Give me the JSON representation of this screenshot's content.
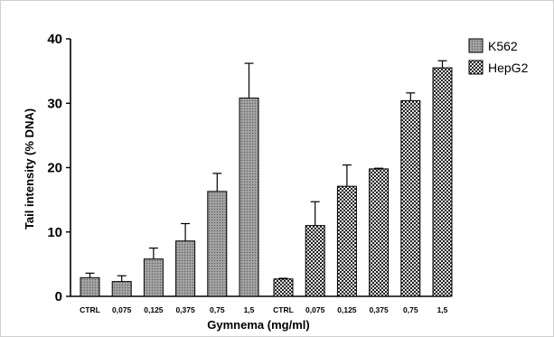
{
  "chart_data": {
    "type": "bar",
    "ylabel": "Tail intensity (% DNA)",
    "xlabel": "Gymnema (mg/ml)",
    "ylim": [
      0,
      40
    ],
    "yticks": [
      0,
      10,
      20,
      30,
      40
    ],
    "grid": false,
    "legend_position": "top-right",
    "groups": [
      {
        "name": "K562",
        "pattern": "dots",
        "categories": [
          "CTRL",
          "0,075",
          "0,125",
          "0,375",
          "0,75",
          "1,5"
        ],
        "values": [
          2.9,
          2.3,
          5.8,
          8.6,
          16.3,
          30.8
        ],
        "errors": [
          0.7,
          0.9,
          1.7,
          2.7,
          2.8,
          5.4
        ]
      },
      {
        "name": "HepG2",
        "pattern": "checker",
        "categories": [
          "CTRL",
          "0,075",
          "0,125",
          "0,375",
          "0,75",
          "1,5"
        ],
        "values": [
          2.7,
          11.0,
          17.1,
          19.8,
          30.4,
          35.5
        ],
        "errors": [
          0.1,
          3.7,
          3.3,
          0.1,
          1.2,
          1.1
        ]
      }
    ]
  },
  "legend": {
    "items": [
      {
        "label": "K562",
        "pattern": "dots"
      },
      {
        "label": "HepG2",
        "pattern": "checker"
      }
    ]
  }
}
